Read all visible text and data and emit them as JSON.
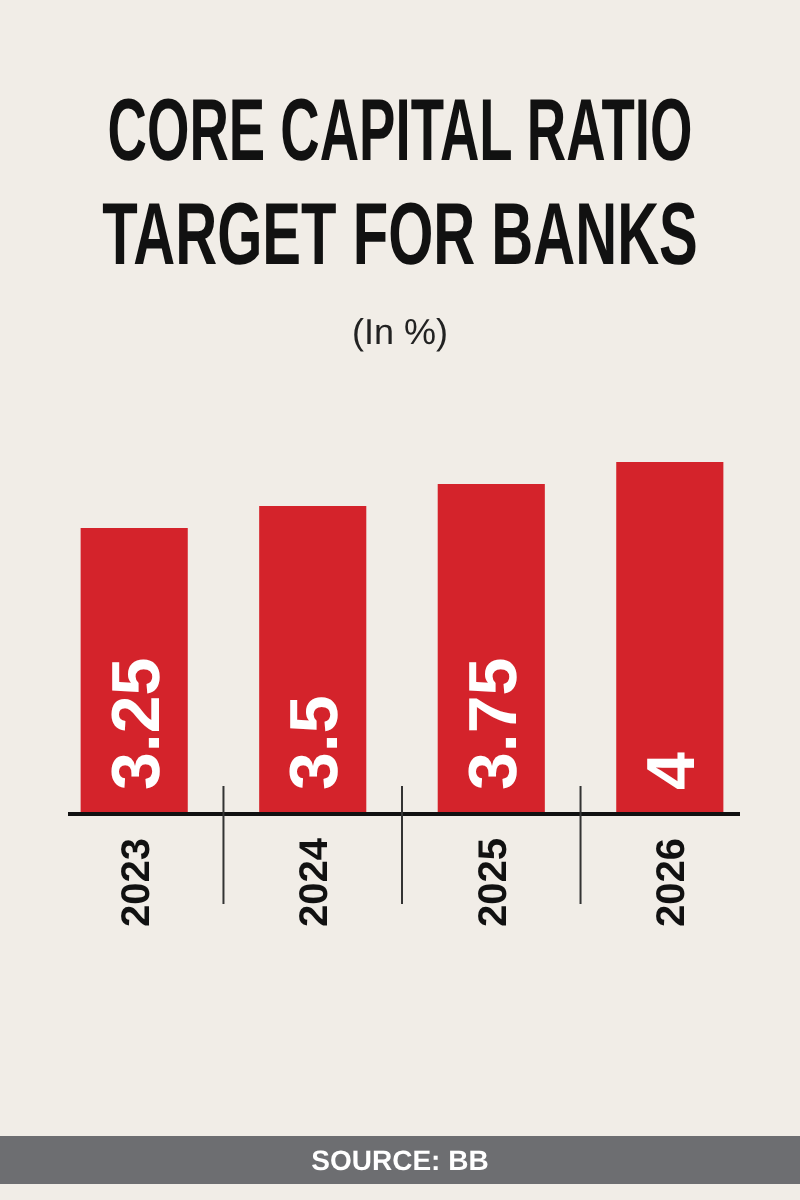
{
  "chart_data": {
    "type": "bar",
    "title": "CORE CAPITAL RATIO\nTARGET FOR BANKS",
    "subtitle": "(In %)",
    "categories": [
      "2023",
      "2024",
      "2025",
      "2026"
    ],
    "values": [
      3.25,
      3.5,
      3.75,
      4
    ],
    "color": "#d4232b",
    "data_labels": true,
    "annotations": [
      "SOURCE: BB"
    ]
  }
}
